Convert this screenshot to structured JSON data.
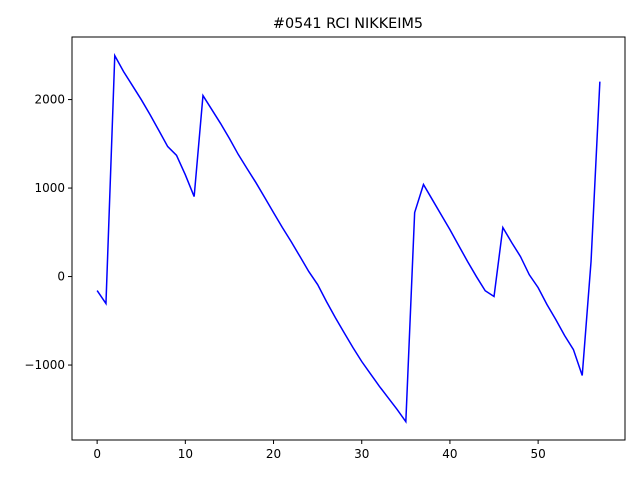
{
  "chart_data": {
    "type": "line",
    "title": "#0541 RCI NIKKEIM5",
    "x": [
      0,
      1,
      2,
      3,
      4,
      5,
      6,
      7,
      8,
      9,
      10,
      11,
      12,
      13,
      14,
      15,
      16,
      17,
      18,
      19,
      20,
      21,
      22,
      23,
      24,
      25,
      26,
      27,
      28,
      29,
      30,
      31,
      32,
      33,
      34,
      35,
      36,
      37,
      38,
      39,
      40,
      41,
      42,
      43,
      44,
      45,
      46,
      47,
      48,
      49,
      50,
      51,
      52,
      53,
      54,
      55,
      56,
      57
    ],
    "series": [
      {
        "name": "RCI",
        "color": "#0000ff",
        "values": [
          -158,
          -305,
          2497,
          2316,
          2158,
          2000,
          1830,
          1650,
          1469,
          1370,
          1150,
          904,
          2045,
          1887,
          1729,
          1560,
          1380,
          1220,
          1062,
          893,
          723,
          554,
          395,
          226,
          56,
          -90,
          -282,
          -463,
          -633,
          -802,
          -960,
          -1100,
          -1240,
          -1370,
          -1500,
          -1640,
          723,
          1040,
          870,
          700,
          530,
          350,
          170,
          0,
          -160,
          -225,
          554,
          385,
          226,
          20,
          -125,
          -316,
          -485,
          -666,
          -825,
          -1118,
          170,
          2203
        ]
      }
    ],
    "xlim": [
      -2.85,
      59.85
    ],
    "ylim": [
      -1847,
      2707
    ],
    "xticks": [
      0,
      10,
      20,
      30,
      40,
      50
    ],
    "yticks": [
      {
        "value": -1000,
        "label": "−1000"
      },
      0,
      1000,
      2000
    ]
  }
}
